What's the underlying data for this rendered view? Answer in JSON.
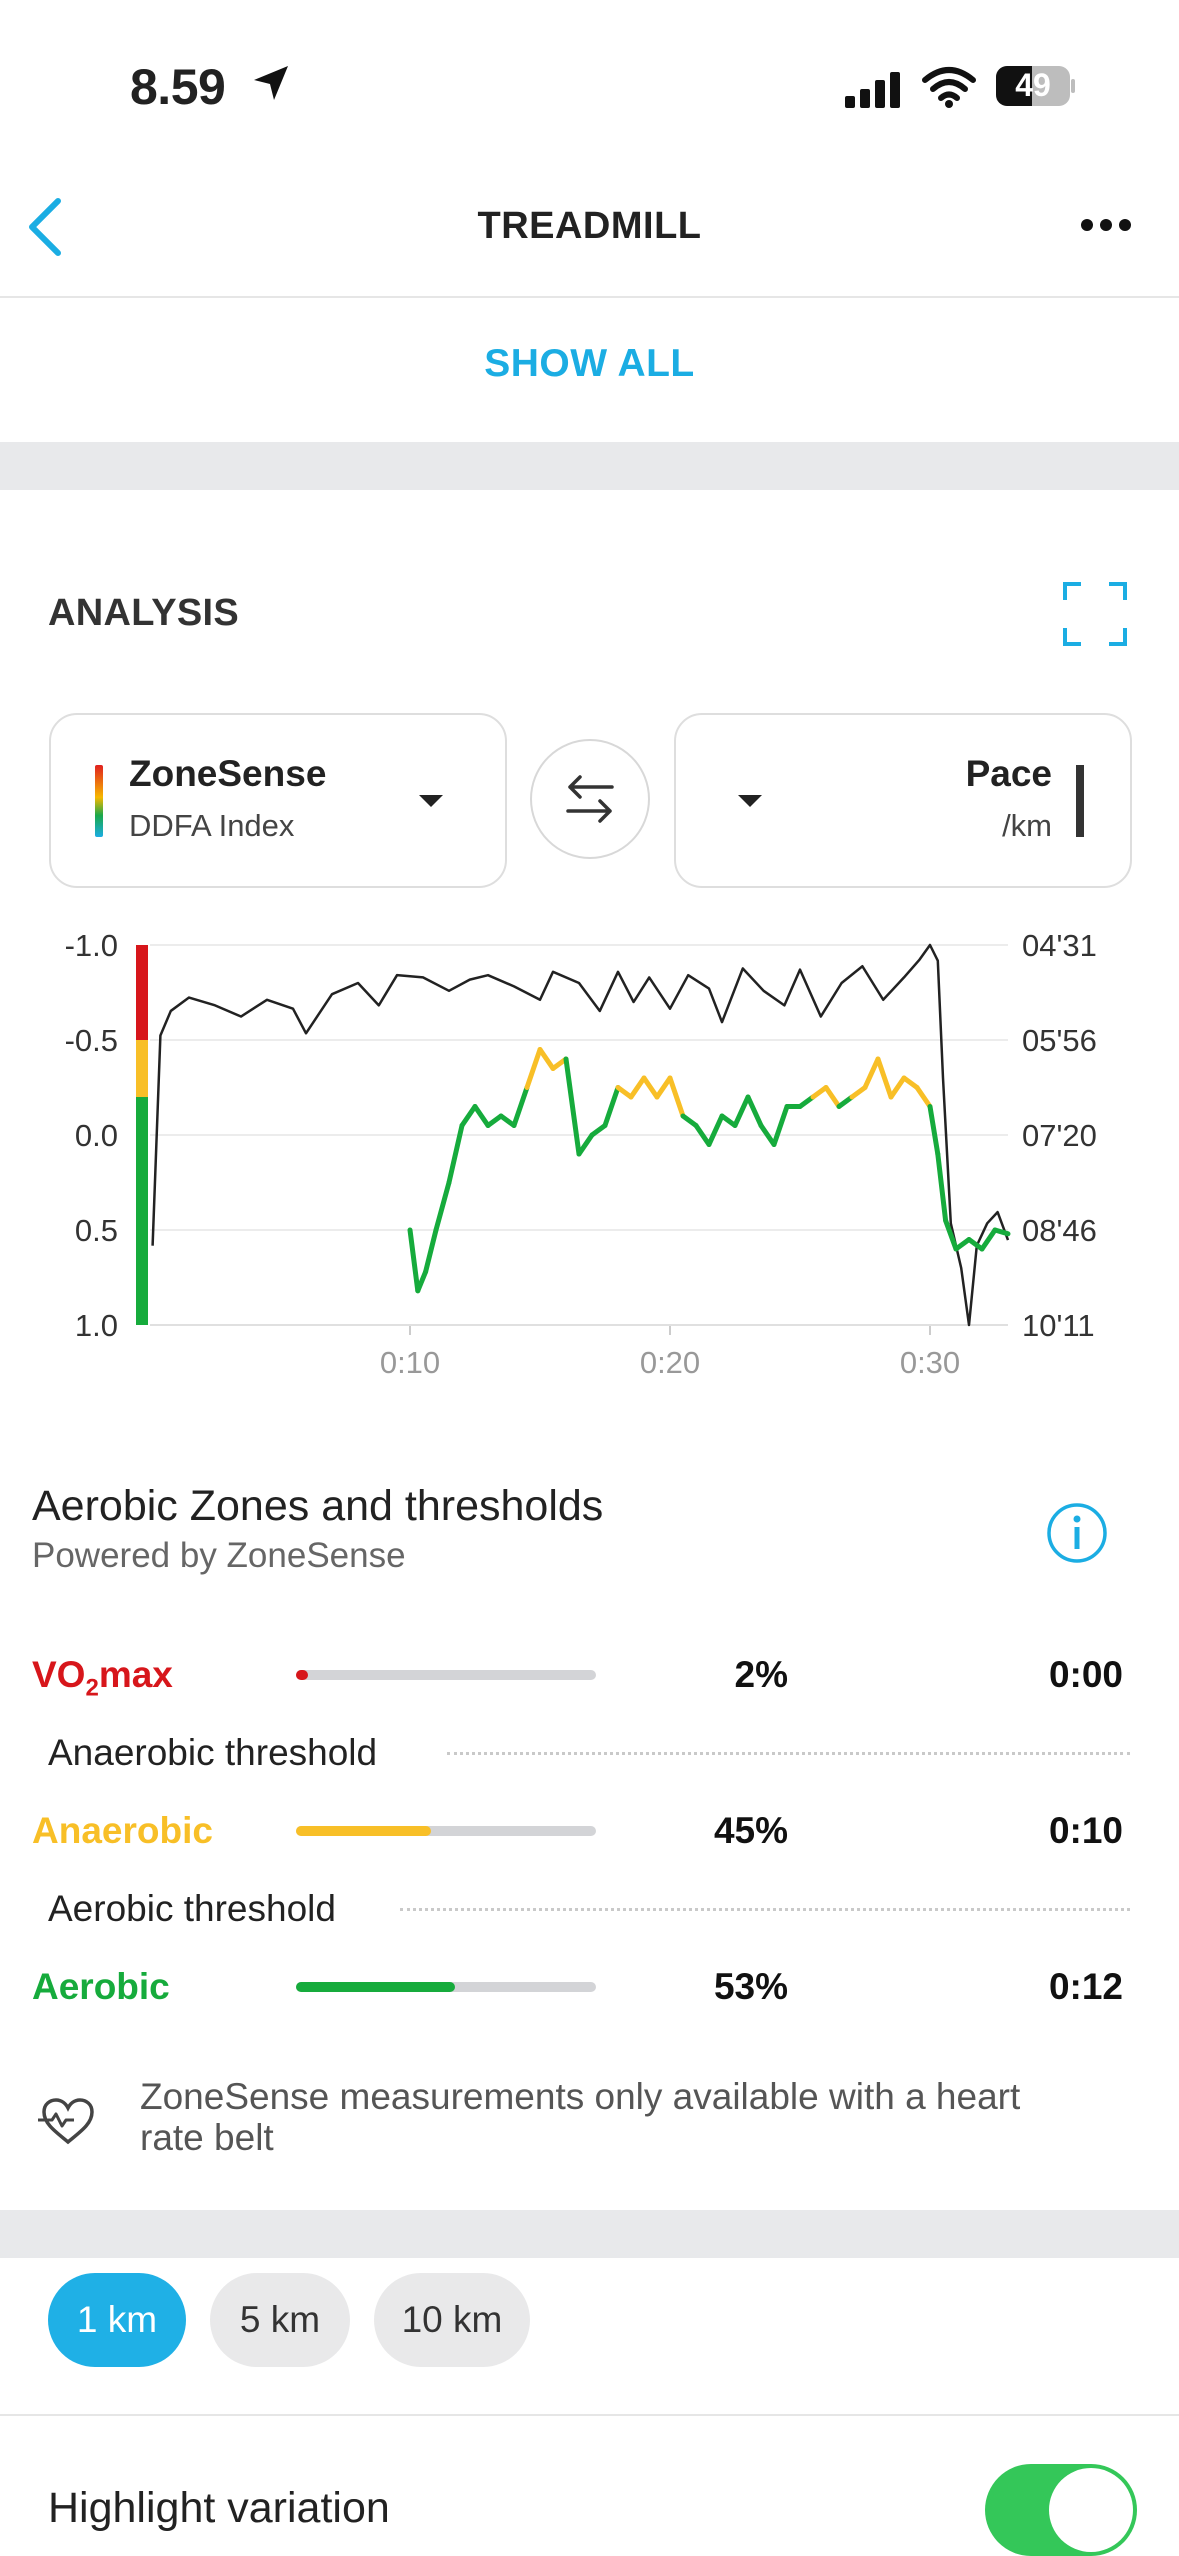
{
  "status_bar": {
    "time": "8.59",
    "battery": "49"
  },
  "nav": {
    "back_icon": "chevron-left-icon",
    "title": "TREADMILL",
    "more_icon": "more-horizontal-icon"
  },
  "show_all": "SHOW ALL",
  "analysis": {
    "title": "ANALYSIS",
    "expand_icon": "fullscreen-icon",
    "left_selector": {
      "title": "ZoneSense",
      "subtitle": "DDFA Index"
    },
    "right_selector": {
      "title": "Pace",
      "subtitle": "/km"
    },
    "swap_icon": "swap-arrows-icon"
  },
  "chart_data": {
    "type": "line",
    "left_axis": {
      "ticks": [
        "-1.0",
        "-0.5",
        "0.0",
        "0.5",
        "1.0"
      ],
      "range": [
        -1.0,
        1.0
      ],
      "inverted": true
    },
    "right_axis": {
      "ticks": [
        "04'31",
        "05'56",
        "07'20",
        "08'46",
        "10'11"
      ]
    },
    "x_axis": {
      "ticks": [
        "0:10",
        "0:20",
        "0:30"
      ],
      "range_minutes": [
        0,
        33
      ]
    },
    "grid": true,
    "series": [
      {
        "name": "Pace",
        "color": "#222222",
        "axis": "right",
        "x": [
          0.1,
          0.4,
          0.8,
          1.5,
          2.5,
          3.5,
          4.5,
          5.5,
          6,
          7,
          8,
          8.8,
          9.5,
          10.5,
          11.5,
          12.3,
          13,
          14,
          15,
          15.5,
          16.5,
          17.3,
          18,
          18.6,
          19.2,
          20,
          20.7,
          21.5,
          22,
          22.8,
          23.6,
          24.4,
          25,
          25.8,
          26.6,
          27.4,
          28.2,
          29,
          29.6,
          30,
          30.3,
          30.5,
          30.8,
          31.2,
          31.5,
          31.8,
          32.2,
          32.6,
          33
        ],
        "y": [
          "09'00",
          "05'52",
          "05'30",
          "05'18",
          "05'25",
          "05'35",
          "05'20",
          "05'28",
          "05'50",
          "05'15",
          "05'05",
          "05'25",
          "04'58",
          "05'00",
          "05'12",
          "05'02",
          "04'58",
          "05'08",
          "05'20",
          "04'55",
          "05'05",
          "05'30",
          "04'55",
          "05'22",
          "05'00",
          "05'28",
          "04'58",
          "05'10",
          "05'40",
          "04'52",
          "05'12",
          "05'25",
          "04'53",
          "05'35",
          "05'05",
          "04'50",
          "05'20",
          "05'00",
          "04'44",
          "04'31",
          "04'45",
          "06'30",
          "08'40",
          "09'20",
          "10'11",
          "09'00",
          "08'40",
          "08'30",
          "08'55"
        ]
      },
      {
        "name": "DDFA Index",
        "axis": "left",
        "segments_colored_by_zone": true,
        "x": [
          10,
          10.3,
          10.6,
          11,
          11.5,
          12,
          12.5,
          13,
          13.5,
          14,
          14.5,
          15,
          15.5,
          16,
          16.5,
          17,
          17.5,
          18,
          18.5,
          19,
          19.5,
          20,
          20.5,
          21,
          21.5,
          22,
          22.5,
          23,
          23.5,
          24,
          24.5,
          25,
          25.5,
          26,
          26.5,
          27,
          27.5,
          28,
          28.5,
          29,
          29.5,
          30,
          30.3,
          30.6,
          31,
          31.5,
          32,
          32.5,
          33
        ],
        "y": [
          0.5,
          0.82,
          0.72,
          0.5,
          0.25,
          -0.05,
          -0.15,
          -0.05,
          -0.1,
          -0.05,
          -0.25,
          -0.45,
          -0.35,
          -0.4,
          0.1,
          0.0,
          -0.05,
          -0.25,
          -0.2,
          -0.3,
          -0.2,
          -0.3,
          -0.1,
          -0.05,
          0.05,
          -0.1,
          -0.05,
          -0.2,
          -0.05,
          0.05,
          -0.15,
          -0.15,
          -0.2,
          -0.25,
          -0.15,
          -0.2,
          -0.25,
          -0.4,
          -0.2,
          -0.3,
          -0.25,
          -0.15,
          0.1,
          0.45,
          0.6,
          0.55,
          0.6,
          0.5,
          0.52
        ]
      }
    ],
    "zone_bands": [
      {
        "zone": "VO2max",
        "from": -1.0,
        "to": -0.5,
        "color": "#d7161b"
      },
      {
        "zone": "Anaerobic",
        "from": -0.5,
        "to": -0.2,
        "color": "#f8bf27"
      },
      {
        "zone": "Aerobic",
        "from": -0.2,
        "to": 1.0,
        "color": "#16ab3c"
      }
    ]
  },
  "zones": {
    "title": "Aerobic Zones and thresholds",
    "subtitle": "Powered by ZoneSense",
    "info_icon": "info-icon",
    "rows": [
      {
        "name_prefix": "VO",
        "name_sub": "2",
        "name_suffix": "max",
        "color": "#d7161b",
        "percent_value": 0.02,
        "percent": "2%",
        "time": "0:00"
      },
      {
        "name": "Anaerobic",
        "color": "#f8bf27",
        "percent_value": 0.45,
        "percent": "45%",
        "time": "0:10"
      },
      {
        "name": "Aerobic",
        "color": "#16ab3c",
        "percent_value": 0.53,
        "percent": "53%",
        "time": "0:12"
      }
    ],
    "thresholds": [
      "Anaerobic threshold",
      "Aerobic threshold"
    ],
    "note": "ZoneSense measurements only available with a heart rate belt",
    "note_icon": "heart-outline-icon"
  },
  "splits": {
    "chips": [
      "1 km",
      "5 km",
      "10 km"
    ],
    "active": "1 km"
  },
  "highlight": {
    "label": "Highlight variation",
    "toggle_on": true
  }
}
